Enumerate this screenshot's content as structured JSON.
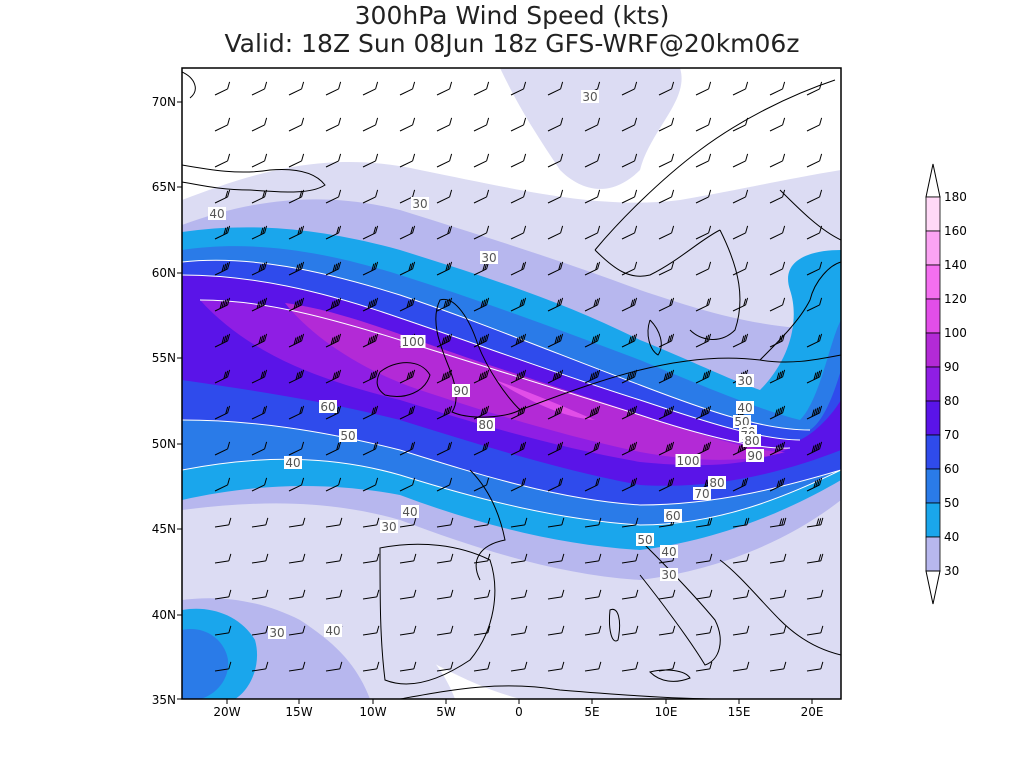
{
  "header": {
    "title": "300hPa Wind Speed (kts)",
    "subtitle": "Valid: 18Z Sun 08Jun 18z GFS-WRF@20km06z"
  },
  "map": {
    "lat_labels": [
      "70N",
      "65N",
      "60N",
      "55N",
      "50N",
      "45N",
      "40N",
      "35N"
    ],
    "lon_labels": [
      "20W",
      "15W",
      "10W",
      "5W",
      "0",
      "5E",
      "10E",
      "15E",
      "20E"
    ],
    "contour_labels": [
      "30",
      "30",
      "30",
      "30",
      "30",
      "30",
      "30",
      "40",
      "40",
      "40",
      "40",
      "40",
      "40",
      "50",
      "50",
      "50",
      "60",
      "60",
      "60",
      "70",
      "70",
      "80",
      "80",
      "80",
      "90",
      "90",
      "100",
      "100"
    ]
  },
  "colorbar": {
    "levels": [
      "180",
      "160",
      "140",
      "120",
      "100",
      "90",
      "80",
      "70",
      "60",
      "50",
      "40",
      "30"
    ],
    "colors": [
      "#ffd9f7",
      "#fba3f3",
      "#f46ff0",
      "#e24ee8",
      "#b32ad6",
      "#8f1ee4",
      "#5a14e8",
      "#2f4bec",
      "#2a7be8",
      "#1aa6ec",
      "#b7b7ee",
      "#dcdcf3"
    ]
  }
}
